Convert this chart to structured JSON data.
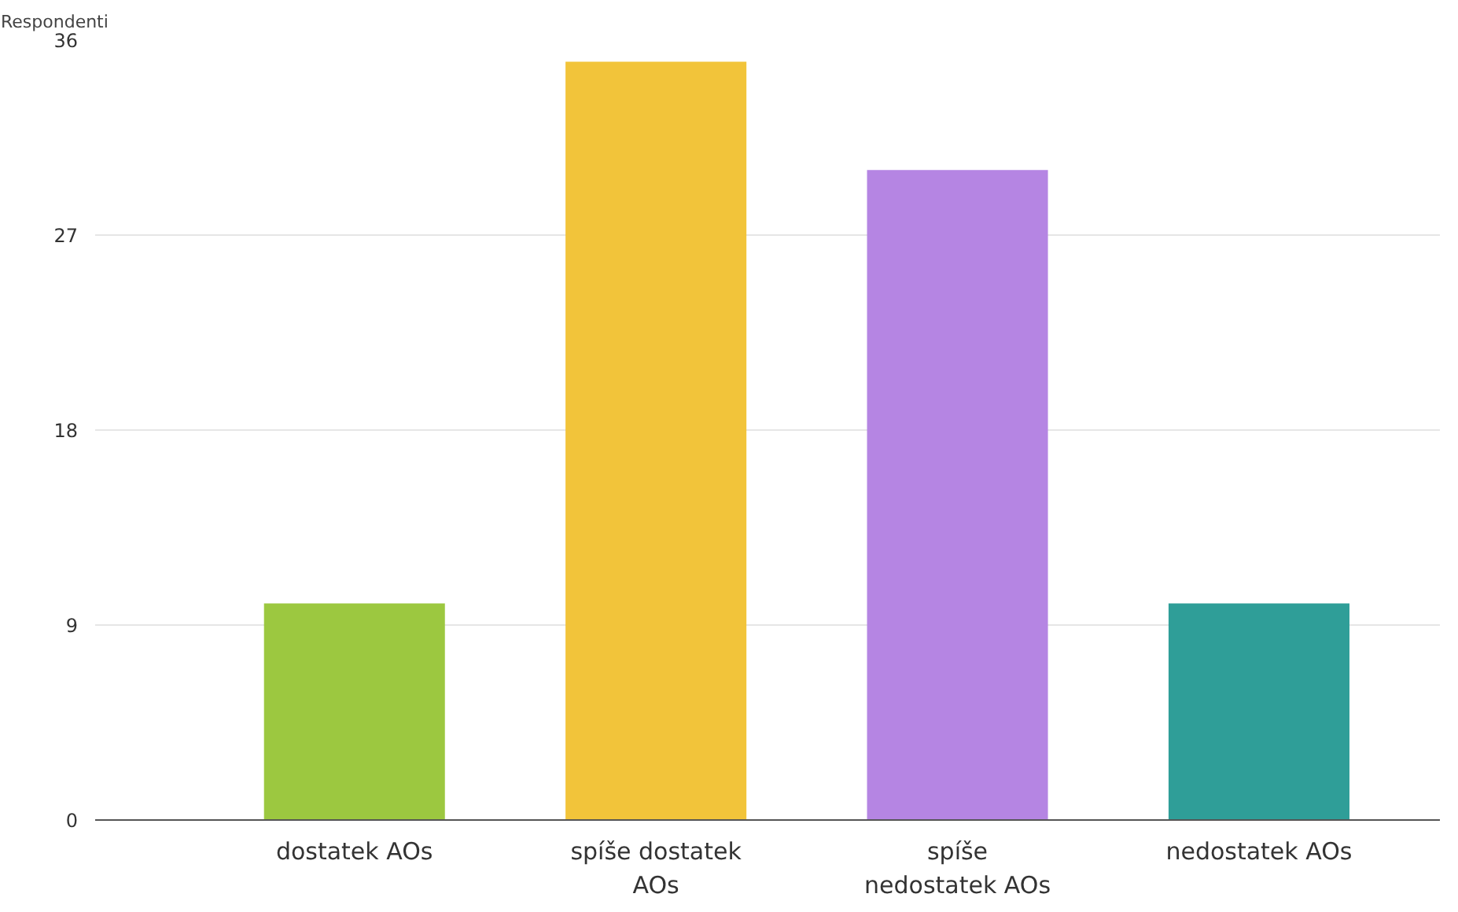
{
  "chart_data": {
    "type": "bar",
    "ylabel": "Respondenti",
    "categories": [
      "dostatek AOs",
      "spíše dostatek AOs",
      "spíše nedostatek AOs",
      "nedostatek AOs"
    ],
    "values": [
      10,
      35,
      30,
      10
    ],
    "colors": [
      "#9cc840",
      "#f2c43a",
      "#b585e3",
      "#2f9e98"
    ],
    "ylim": [
      0,
      36
    ],
    "yticks": [
      0,
      9,
      18,
      27,
      36
    ],
    "grid": "y"
  }
}
